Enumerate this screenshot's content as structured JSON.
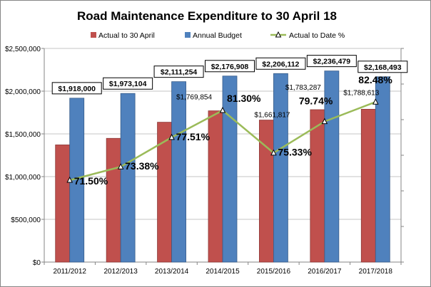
{
  "chart_data": {
    "type": "bar+line",
    "title": "Road Maintenance Expenditure to 30 April 18",
    "categories": [
      "2011/2012",
      "2012/2013",
      "2013/2014",
      "2014/2015",
      "2015/2016",
      "2016/2017",
      "2017/2018"
    ],
    "series": [
      {
        "name": "Actual to 30 April",
        "type": "bar",
        "color": "#C0504D",
        "values": [
          1371370,
          1447868,
          1636433,
          1769854,
          1661817,
          1783287,
          1788613
        ],
        "labels": [
          "",
          "",
          "",
          "$1,769,854",
          "$1,661,817",
          "$1,783,287",
          "$1,788,613"
        ]
      },
      {
        "name": "Annual Budget",
        "type": "bar",
        "color": "#4F81BD",
        "values": [
          1918000,
          1973104,
          2111254,
          2176908,
          2206112,
          2236479,
          2168493
        ],
        "labels": [
          "$1,918,000",
          "$1,973,104",
          "$2,111,254",
          "$2,176,908",
          "$2,206,112",
          "$2,236,479",
          "$2,168,493"
        ]
      },
      {
        "name": "Actual to Date %",
        "type": "line",
        "axis": "secondary",
        "color": "#9BBB59",
        "marker": "triangle",
        "values": [
          71.5,
          73.38,
          77.51,
          81.3,
          75.33,
          79.74,
          82.48
        ],
        "labels": [
          "71.50%",
          "73.38%",
          "77.51%",
          "81.30%",
          "75.33%",
          "79.74%",
          "82.48%"
        ]
      }
    ],
    "ylim": [
      0,
      2500000
    ],
    "yticks": [
      "$0",
      "$500,000",
      "$1,000,000",
      "$1,500,000",
      "$2,000,000",
      "$2,500,000"
    ],
    "y2lim": [
      60,
      90
    ],
    "grid": true,
    "legend": "top"
  }
}
